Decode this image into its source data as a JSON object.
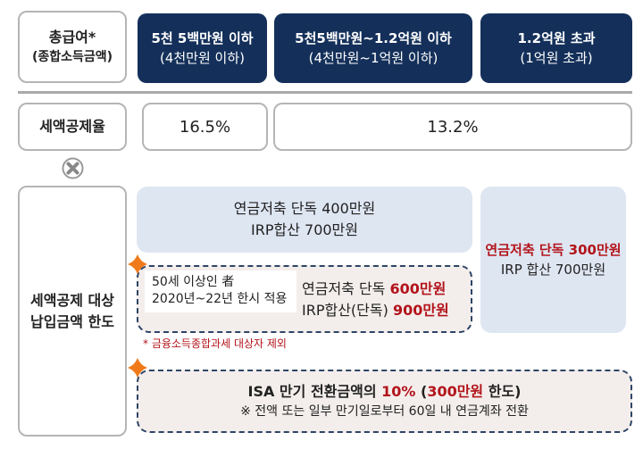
{
  "header": {
    "label_line1": "총급여*",
    "label_line2": "(종합소득금액)",
    "columns": [
      {
        "line1": "5천 5백만원 이하",
        "line2": "(4천만원 이하)"
      },
      {
        "line1": "5천5백만원~1.2억원 이하",
        "line2": "(4천만원~1억원 이하)"
      },
      {
        "line1": "1.2억원 초과",
        "line2": "(1억원 초과)"
      }
    ]
  },
  "rate": {
    "label": "세액공제율",
    "values": [
      "16.5%",
      "13.2%"
    ]
  },
  "multiply_icon": "multiply-circle-icon",
  "limit": {
    "label_line1": "세액공제 대상",
    "label_line2": "납입금액 한도",
    "general": {
      "line1": "연금저축 단독 400만원",
      "line2": "IRP합산 700만원"
    },
    "high_income": {
      "line1": "연금저축 단독 300만원",
      "line2": "IRP 합산 700만원"
    },
    "over50": {
      "condition_line1": "50세 이상인 者",
      "condition_line2": "2020년~22년 한시 적용",
      "pension_label": "연금저축 단독 ",
      "pension_value": "600만원",
      "irp_label": "IRP합산(단독) ",
      "irp_value": "900만원"
    },
    "over50_note": "* 금융소득종합과세 대상자 제외",
    "isa": {
      "prefix": "ISA 만기 전환금액의 ",
      "percent": "10%",
      "open": " (",
      "cap": "300만원",
      "suffix": " 한도)",
      "note": "※ 전액 또는 일부 만기일로부터 60일 내 연금계좌 전환"
    }
  },
  "colors": {
    "navy": "#14305a",
    "light_blue": "#dee6f2",
    "red": "#b3141b",
    "star": "#f07a1a"
  }
}
